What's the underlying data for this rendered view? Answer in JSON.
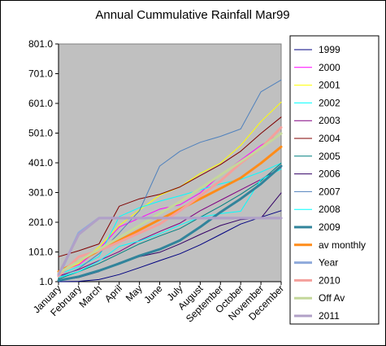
{
  "chart_data": {
    "type": "line",
    "title": "Annual Cummulative Rainfall Mar99",
    "xlabel": "",
    "ylabel": "",
    "categories": [
      "January",
      "February",
      "March",
      "April",
      "May",
      "June",
      "July",
      "August",
      "September",
      "October",
      "November",
      "December"
    ],
    "ylim": [
      1.0,
      801.0
    ],
    "yticks": [
      "801.0",
      "701.0",
      "601.0",
      "501.0",
      "401.0",
      "301.0",
      "201.0",
      "101.0",
      "1.0"
    ],
    "grid": false,
    "plot_background": "#c0c0c0",
    "legend_position": "right",
    "series": [
      {
        "name": "1999",
        "color": "#000080",
        "width": 1,
        "values": [
          1,
          2,
          8,
          25,
          48,
          72,
          95,
          125,
          160,
          195,
          218,
          240
        ]
      },
      {
        "name": "2000",
        "color": "#ff00ff",
        "width": 1,
        "values": [
          35,
          58,
          110,
          185,
          215,
          245,
          260,
          300,
          360,
          410,
          460,
          500
        ]
      },
      {
        "name": "2001",
        "color": "#ffff00",
        "width": 1,
        "values": [
          30,
          62,
          118,
          190,
          242,
          292,
          320,
          365,
          400,
          460,
          540,
          605
        ]
      },
      {
        "name": "2002",
        "color": "#00ffff",
        "width": 1,
        "values": [
          25,
          52,
          85,
          220,
          250,
          272,
          290,
          310,
          330,
          345,
          370,
          400
        ]
      },
      {
        "name": "2003",
        "color": "#800080",
        "width": 1,
        "values": [
          20,
          42,
          72,
          102,
          140,
          170,
          198,
          240,
          275,
          310,
          345,
          385
        ]
      },
      {
        "name": "2004",
        "color": "#800000",
        "width": 1,
        "values": [
          85,
          105,
          128,
          255,
          280,
          295,
          320,
          358,
          395,
          440,
          500,
          555
        ]
      },
      {
        "name": "2005",
        "color": "#008080",
        "width": 1,
        "values": [
          10,
          35,
          62,
          95,
          128,
          155,
          180,
          218,
          255,
          295,
          340,
          400
        ]
      },
      {
        "name": "2006",
        "color": "#330066",
        "width": 1,
        "values": [
          5,
          15,
          35,
          65,
          85,
          100,
          128,
          160,
          190,
          210,
          215,
          300
        ]
      },
      {
        "name": "2007",
        "color": "#4f81bd",
        "width": 1,
        "values": [
          15,
          45,
          95,
          165,
          240,
          390,
          440,
          470,
          490,
          515,
          640,
          680
        ]
      },
      {
        "name": "2008",
        "color": "#00ffff",
        "width": 1,
        "values": [
          15,
          35,
          70,
          120,
          138,
          162,
          192,
          218,
          230,
          238,
          345,
          380
        ]
      },
      {
        "name": "2009",
        "color": "#31849b",
        "width": 3,
        "values": [
          5,
          18,
          38,
          62,
          88,
          110,
          140,
          185,
          235,
          280,
          330,
          390
        ]
      },
      {
        "name": "av  monthly",
        "color": "#ff8c1a",
        "width": 3,
        "values": [
          35,
          70,
          105,
          140,
          175,
          210,
          245,
          280,
          315,
          350,
          400,
          455
        ]
      },
      {
        "name": "Year",
        "color": "#8eaadb",
        "width": 3,
        "values": [
          20,
          165,
          215,
          215,
          215,
          215,
          215,
          215,
          215,
          215,
          215,
          215
        ]
      },
      {
        "name": "2010",
        "color": "#f4a09c",
        "width": 3,
        "values": [
          20,
          85,
          105,
          135,
          165,
          195,
          240,
          290,
          340,
          400,
          450,
          520
        ]
      },
      {
        "name": "Off Av",
        "color": "#c4d79b",
        "width": 3,
        "values": [
          30,
          70,
          110,
          150,
          190,
          230,
          270,
          315,
          360,
          405,
          450,
          500
        ]
      },
      {
        "name": "2011",
        "color": "#b1a0c7",
        "width": 3,
        "values": [
          25,
          160,
          215,
          215,
          215,
          215,
          215,
          215,
          215,
          215,
          215,
          215
        ]
      }
    ]
  }
}
